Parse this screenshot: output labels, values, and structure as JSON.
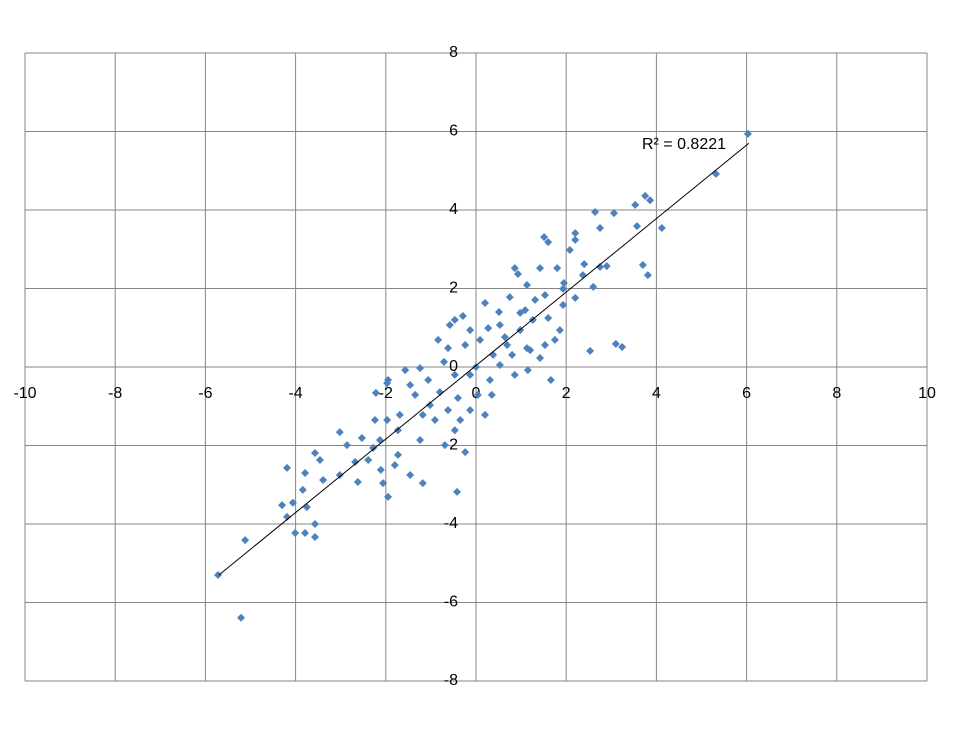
{
  "chart_data": {
    "type": "scatter",
    "annotation": "R² = 0.8221",
    "xlim": [
      -10,
      10
    ],
    "xticks": [
      -10,
      -8,
      -6,
      -4,
      -2,
      0,
      2,
      4,
      6,
      8,
      10
    ],
    "ylim": [
      -8,
      8
    ],
    "yticks": [
      -8,
      -6,
      -4,
      -2,
      0,
      2,
      4,
      6,
      8
    ],
    "grid": true,
    "trendline": {
      "x": [
        -5.7,
        6.05
      ],
      "y": [
        -5.3,
        5.7
      ],
      "color": "#000000"
    },
    "series": [
      {
        "color": "#4f81bd",
        "x": [
          6.03,
          5.32,
          3.75,
          3.86,
          3.53,
          4.12,
          3.57,
          3.06,
          2.64,
          2.2,
          2.2,
          1.51,
          1.6,
          3.7,
          3.81,
          2.9,
          2.75,
          2.4,
          2.6,
          1.95,
          2.2,
          1.93,
          1.93,
          2.53,
          3.1,
          3.24,
          1.66,
          0.86,
          0.93,
          1.42,
          1.8,
          1.13,
          0.75,
          0.2,
          0.51,
          0.98,
          1.26,
          1.6,
          1.75,
          1.42,
          1.13,
          0.64,
          0.27,
          0.09,
          0.38,
          0,
          -0.13,
          -0.47,
          -0.71,
          -0.62,
          -0.47,
          -0.58,
          -0.29,
          -0.84,
          -1.06,
          -1.35,
          -1.57,
          -1.95,
          -1.97,
          -2.22,
          -1.97,
          -2.24,
          -1.69,
          -1.18,
          -0.91,
          -0.62,
          -0.35,
          -0.24,
          -0.69,
          -1.24,
          -1.73,
          -2.28,
          -2.39,
          -2.68,
          -3.02,
          -2.86,
          -3.57,
          -3.46,
          -3.02,
          -3.39,
          -2.62,
          -2.11,
          -2.06,
          -1.8,
          -1.46,
          -1.18,
          -0.42,
          -1.95,
          -3.79,
          -4.19,
          -3.84,
          -4.3,
          -4.06,
          -4.19,
          -3.75,
          -3.57,
          -4.01,
          -3.79,
          -3.57,
          -5.12,
          -5.72,
          -5.21,
          0.69,
          0.98,
          1.2,
          0.53,
          0.31,
          0.04,
          -0.13,
          -0.4,
          -0.8,
          -1.02,
          -0.24,
          0.53,
          0.8,
          1.53,
          1.86,
          1.31,
          1.09,
          1.53,
          2.37,
          2.08,
          2.75,
          -1.46,
          -1.24,
          -1.73,
          -2.13,
          -2.53,
          -0.47,
          0.2,
          0.35,
          0.86,
          1.15,
          -0.13
        ],
        "values": [
          5.94,
          4.92,
          4.36,
          4.25,
          4.13,
          3.54,
          3.59,
          3.92,
          3.95,
          3.41,
          3.24,
          3.31,
          3.18,
          2.6,
          2.34,
          2.57,
          2.55,
          2.62,
          2.04,
          2.14,
          1.76,
          1.58,
          1.99,
          0.41,
          0.59,
          0.51,
          -0.33,
          2.52,
          2.37,
          2.52,
          2.52,
          2.09,
          1.78,
          1.63,
          1.4,
          1.38,
          1.2,
          1.25,
          0.69,
          0.23,
          0.48,
          0.76,
          0.99,
          0.69,
          0.31,
          0,
          -0.2,
          -0.2,
          0.13,
          0.48,
          1.2,
          1.07,
          1.3,
          0.69,
          -0.33,
          -0.71,
          -0.08,
          -0.33,
          -0.41,
          -0.66,
          -1.35,
          -1.35,
          -1.22,
          -1.22,
          -1.35,
          -1.1,
          -1.35,
          -2.17,
          -1.99,
          -1.86,
          -2.24,
          -2.06,
          -2.37,
          -2.42,
          -1.66,
          -1.99,
          -2.19,
          -2.37,
          -2.75,
          -2.88,
          -2.93,
          -2.62,
          -2.96,
          -2.5,
          -2.75,
          -2.96,
          -3.18,
          -3.31,
          -2.7,
          -2.57,
          -3.13,
          -3.52,
          -3.46,
          -3.82,
          -3.57,
          -4.0,
          -4.23,
          -4.23,
          -4.33,
          -4.41,
          -5.3,
          -6.39,
          0.56,
          0.94,
          0.43,
          0.05,
          -0.33,
          -0.71,
          -1.1,
          -0.79,
          -0.64,
          -0.97,
          0.56,
          1.07,
          0.31,
          0.56,
          0.94,
          1.71,
          1.45,
          1.83,
          2.34,
          2.98,
          3.54,
          -0.46,
          -0.03,
          -1.61,
          -1.86,
          -1.81,
          -1.61,
          -1.22,
          -0.71,
          -0.2,
          -0.08,
          0.94
        ]
      }
    ]
  }
}
